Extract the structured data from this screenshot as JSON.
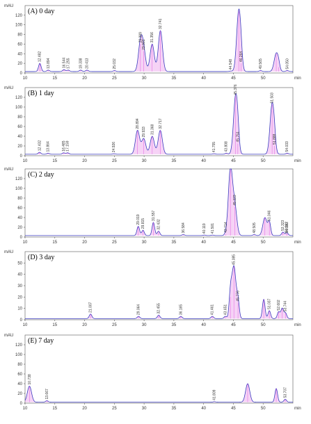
{
  "chart_data": [
    {
      "type": "line",
      "title": "(A) 0 day",
      "ylabel": "mAU",
      "xlabel": "min",
      "ylim": [
        0,
        140
      ],
      "yticks": [
        0,
        20,
        40,
        60,
        80,
        100,
        120
      ],
      "xlim": [
        10,
        55
      ],
      "xticks": [
        10,
        15,
        20,
        25,
        30,
        35,
        40,
        45,
        50
      ],
      "baseline": 3,
      "peaks": [
        {
          "x": 12.482,
          "y": 20,
          "label": "12.482"
        },
        {
          "x": 13.894,
          "y": 6,
          "label": "13.894"
        },
        {
          "x": 16.544,
          "y": 7,
          "label": "16.544"
        },
        {
          "x": 17.255,
          "y": 6,
          "label": "17.255"
        },
        {
          "x": 19.338,
          "y": 6,
          "label": "19.338"
        },
        {
          "x": 20.413,
          "y": 6,
          "label": "20.413"
        },
        {
          "x": 25.032,
          "y": 5,
          "label": "25.032"
        },
        {
          "x": 29.389,
          "y": 60,
          "label": "29.389"
        },
        {
          "x": 29.901,
          "y": 45,
          "label": "29.901"
        },
        {
          "x": 31.356,
          "y": 60,
          "label": "31.356"
        },
        {
          "x": 32.741,
          "y": 88,
          "label": "32.741"
        },
        {
          "x": 44.548,
          "y": 4,
          "label": "44.548"
        },
        {
          "x": 45.9,
          "y": 128,
          "label": ""
        },
        {
          "x": 46.264,
          "y": 20,
          "label": "46.264"
        },
        {
          "x": 49.565,
          "y": 5,
          "label": "49.565"
        },
        {
          "x": 52.2,
          "y": 40,
          "label": ""
        },
        {
          "x": 52.6,
          "y": 12,
          "label": ""
        },
        {
          "x": 54.05,
          "y": 5,
          "label": "54.050"
        }
      ]
    },
    {
      "type": "line",
      "title": "(B) 1 day",
      "ylabel": "mAU",
      "xlabel": "min",
      "ylim": [
        0,
        140
      ],
      "yticks": [
        0,
        20,
        40,
        60,
        80,
        100,
        120
      ],
      "xlim": [
        10,
        55
      ],
      "xticks": [
        10,
        15,
        20,
        25,
        30,
        35,
        40,
        45,
        50
      ],
      "baseline": 3,
      "peaks": [
        {
          "x": 12.432,
          "y": 7,
          "label": "12.432"
        },
        {
          "x": 13.864,
          "y": 5,
          "label": "13.864"
        },
        {
          "x": 16.485,
          "y": 6,
          "label": "16.485"
        },
        {
          "x": 17.159,
          "y": 6,
          "label": "17.159"
        },
        {
          "x": 24.926,
          "y": 4,
          "label": "24.926"
        },
        {
          "x": 28.894,
          "y": 52,
          "label": "28.894"
        },
        {
          "x": 29.933,
          "y": 35,
          "label": "29.933"
        },
        {
          "x": 31.368,
          "y": 40,
          "label": "31.368"
        },
        {
          "x": 32.717,
          "y": 52,
          "label": "32.717"
        },
        {
          "x": 41.755,
          "y": 4,
          "label": "41.755"
        },
        {
          "x": 43.808,
          "y": 5,
          "label": "43.808"
        },
        {
          "x": 45.376,
          "y": 122,
          "label": "45.376"
        },
        {
          "x": 45.751,
          "y": 25,
          "label": "45.751"
        },
        {
          "x": 51.503,
          "y": 105,
          "label": "51.503"
        },
        {
          "x": 51.888,
          "y": 20,
          "label": "51.888"
        },
        {
          "x": 54.033,
          "y": 5,
          "label": "54.033"
        }
      ]
    },
    {
      "type": "line",
      "title": "(C) 2 day",
      "ylabel": "mAU",
      "xlabel": "min",
      "ylim": [
        0,
        140
      ],
      "yticks": [
        0,
        20,
        40,
        60,
        80,
        100,
        120
      ],
      "xlim": [
        10,
        55
      ],
      "xticks": [
        10,
        15,
        20,
        25,
        30,
        35,
        40,
        45,
        50
      ],
      "baseline": 3,
      "peaks": [
        {
          "x": 29.019,
          "y": 22,
          "label": "29.019"
        },
        {
          "x": 29.815,
          "y": 14,
          "label": "29.815"
        },
        {
          "x": 31.557,
          "y": 30,
          "label": "31.557"
        },
        {
          "x": 32.432,
          "y": 12,
          "label": "32.432"
        },
        {
          "x": 36.584,
          "y": 5,
          "label": "36.584"
        },
        {
          "x": 40.119,
          "y": 4,
          "label": "40.119"
        },
        {
          "x": 41.501,
          "y": 4,
          "label": "41.501"
        },
        {
          "x": 43.714,
          "y": 6,
          "label": "43.714"
        },
        {
          "x": 44.5,
          "y": 138,
          "label": ""
        },
        {
          "x": 45.223,
          "y": 62,
          "label": "45.223"
        },
        {
          "x": 48.505,
          "y": 5,
          "label": "48.505"
        },
        {
          "x": 50.3,
          "y": 40,
          "label": ""
        },
        {
          "x": 51.046,
          "y": 30,
          "label": "51.046"
        },
        {
          "x": 53.323,
          "y": 10,
          "label": "53.323"
        },
        {
          "x": 53.962,
          "y": 7,
          "label": "53.962"
        },
        {
          "x": 54.02,
          "y": 5,
          "label": "54.020"
        }
      ]
    },
    {
      "type": "line",
      "title": "(D) 3 day",
      "ylabel": "mAU",
      "xlabel": "min",
      "ylim": [
        0,
        60
      ],
      "yticks": [
        0,
        10,
        20,
        30,
        40,
        50
      ],
      "xlim": [
        10,
        55
      ],
      "xticks": [
        10,
        15,
        20,
        25,
        30,
        35,
        40,
        45,
        50
      ],
      "baseline": 1,
      "peaks": [
        {
          "x": 21.007,
          "y": 5,
          "label": "21.007"
        },
        {
          "x": 29.064,
          "y": 3,
          "label": "29.064"
        },
        {
          "x": 32.455,
          "y": 4,
          "label": "32.455"
        },
        {
          "x": 36.165,
          "y": 3,
          "label": "36.165"
        },
        {
          "x": 41.461,
          "y": 3,
          "label": "41.461"
        },
        {
          "x": 43.651,
          "y": 3,
          "label": "43.651"
        },
        {
          "x": 44.5,
          "y": 20,
          "label": ""
        },
        {
          "x": 45.085,
          "y": 47,
          "label": "45.085"
        },
        {
          "x": 45.776,
          "y": 15,
          "label": "45.776"
        },
        {
          "x": 50.1,
          "y": 18,
          "label": ""
        },
        {
          "x": 51.037,
          "y": 8,
          "label": "51.037"
        },
        {
          "x": 52.602,
          "y": 7,
          "label": "52.602"
        },
        {
          "x": 53.2,
          "y": 10,
          "label": ""
        },
        {
          "x": 53.744,
          "y": 6,
          "label": "53.744"
        }
      ]
    },
    {
      "type": "line",
      "title": "(E) 7 day",
      "ylabel": "mAU",
      "xlabel": "min",
      "ylim": [
        0,
        140
      ],
      "yticks": [
        0,
        20,
        40,
        60,
        80,
        100,
        120
      ],
      "xlim": [
        10,
        55
      ],
      "xticks": [
        10,
        15,
        20,
        25,
        30,
        35,
        40,
        45,
        50
      ],
      "baseline": 2,
      "peaks": [
        {
          "x": 10.738,
          "y": 35,
          "label": "10.738"
        },
        {
          "x": 13.667,
          "y": 5,
          "label": "13.667"
        },
        {
          "x": 41.809,
          "y": 3,
          "label": "41.809"
        },
        {
          "x": 47.4,
          "y": 40,
          "label": ""
        },
        {
          "x": 52.2,
          "y": 30,
          "label": ""
        },
        {
          "x": 53.707,
          "y": 8,
          "label": "53.707"
        }
      ]
    }
  ],
  "colors": {
    "trace": "#3b3bbf",
    "fill": "#e060e0",
    "axis": "#555555"
  }
}
